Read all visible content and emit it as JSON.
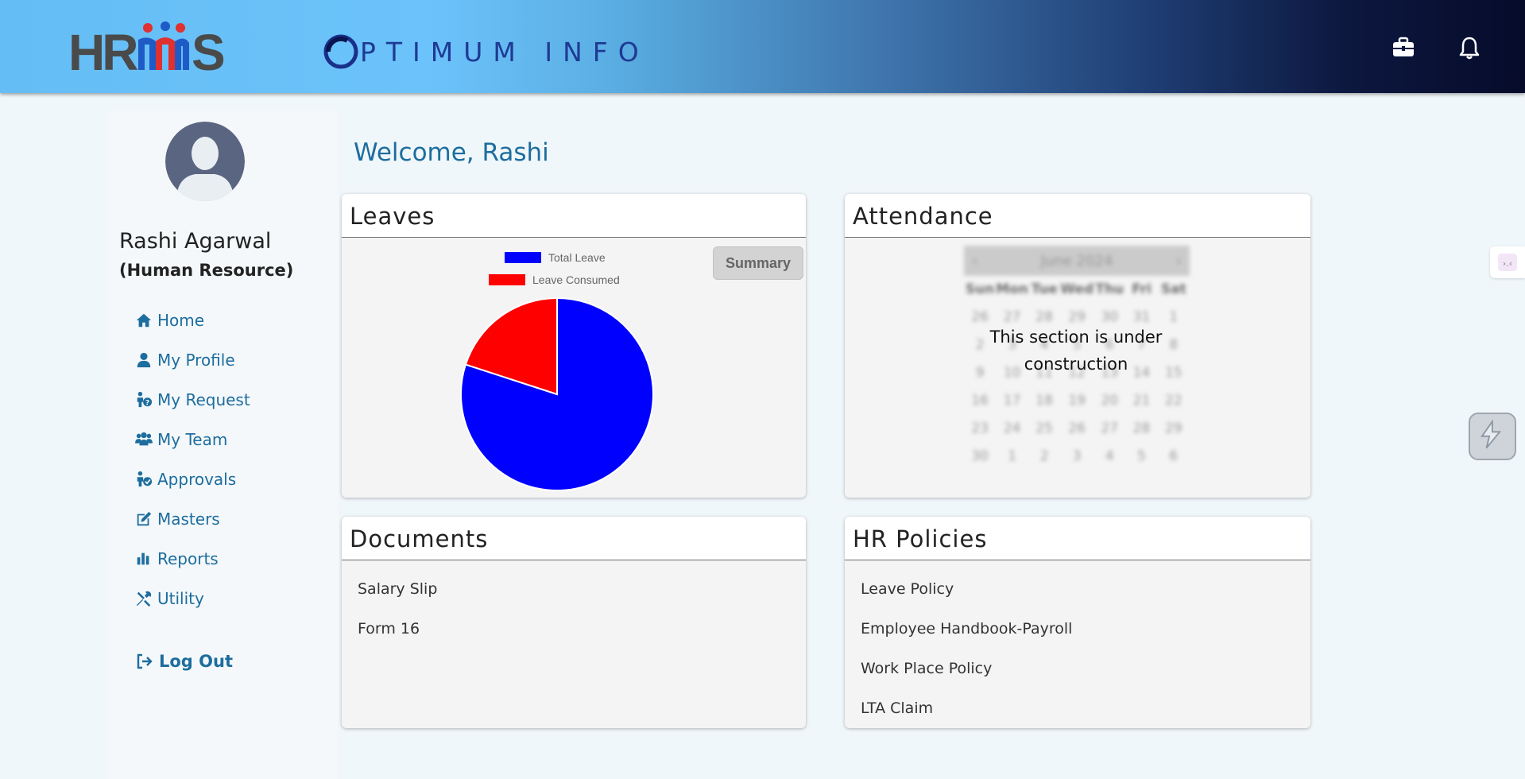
{
  "header": {
    "logo_hrms_text": "HRMS",
    "logo_company_text": "PTIMUM INFO",
    "icons": [
      "briefcase-icon",
      "bell-icon"
    ]
  },
  "user": {
    "name": "Rashi Agarwal",
    "role": "(Human Resource)"
  },
  "nav": {
    "items": [
      {
        "label": "Home",
        "icon": "home-icon"
      },
      {
        "label": "My Profile",
        "icon": "user-icon"
      },
      {
        "label": "My Request",
        "icon": "request-icon"
      },
      {
        "label": "My Team",
        "icon": "team-icon"
      },
      {
        "label": "Approvals",
        "icon": "approval-icon"
      },
      {
        "label": "Masters",
        "icon": "edit-icon"
      },
      {
        "label": "Reports",
        "icon": "chart-icon"
      },
      {
        "label": "Utility",
        "icon": "tools-icon"
      }
    ],
    "logout_label": "Log Out"
  },
  "welcome": "Welcome, Rashi",
  "leaves": {
    "title": "Leaves",
    "summary_label": "Summary",
    "legend": [
      {
        "label": "Total Leave",
        "color": "#0000ff"
      },
      {
        "label": "Leave Consumed",
        "color": "#ff0000"
      }
    ]
  },
  "chart_data": {
    "type": "pie",
    "categories": [
      "Total Leave",
      "Leave Consumed"
    ],
    "values": [
      80,
      20
    ],
    "colors": [
      "#0000ff",
      "#ff0000"
    ],
    "legend": "top"
  },
  "attendance": {
    "title": "Attendance",
    "calendar_month": "June 2024",
    "weekdays": [
      "Sun",
      "Mon",
      "Tue",
      "Wed",
      "Thu",
      "Fri",
      "Sat"
    ],
    "days": [
      "26",
      "27",
      "28",
      "29",
      "30",
      "31",
      "1",
      "2",
      "3",
      "4",
      "5",
      "6",
      "7",
      "8",
      "9",
      "10",
      "11",
      "12",
      "13",
      "14",
      "15",
      "16",
      "17",
      "18",
      "19",
      "20",
      "21",
      "22",
      "23",
      "24",
      "25",
      "26",
      "27",
      "28",
      "29",
      "30",
      "1",
      "2",
      "3",
      "4",
      "5",
      "6"
    ],
    "message_line1": "This section is under",
    "message_line2": "construction"
  },
  "documents": {
    "title": "Documents",
    "items": [
      "Salary Slip",
      "Form 16"
    ]
  },
  "policies": {
    "title": "HR Policies",
    "items": [
      "Leave Policy",
      "Employee Handbook-Payroll",
      "Work Place Policy",
      "LTA Claim"
    ]
  }
}
